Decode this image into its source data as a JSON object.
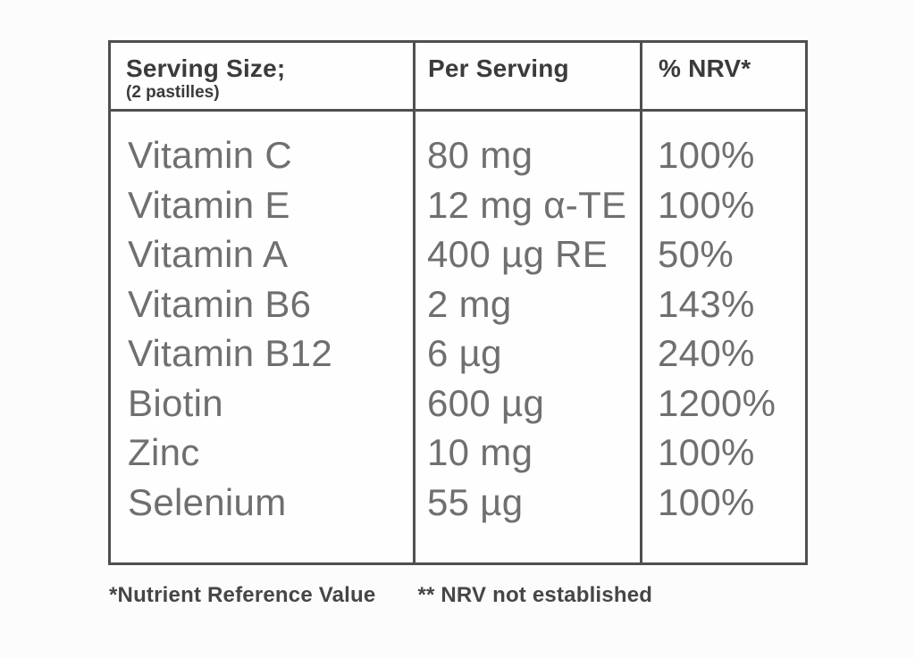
{
  "table": {
    "header": {
      "col1_title": "Serving Size;",
      "col1_subtitle": "(2 pastilles)",
      "col2_title": "Per Serving",
      "col3_title": "% NRV*"
    },
    "rows": [
      {
        "nutrient": "Vitamin C",
        "amount": "80 mg",
        "nrv": "100%"
      },
      {
        "nutrient": "Vitamin E",
        "amount": "12 mg α-TE",
        "nrv": "100%"
      },
      {
        "nutrient": "Vitamin A",
        "amount": "400 µg RE",
        "nrv": "50%"
      },
      {
        "nutrient": "Vitamin B6",
        "amount": "2 mg",
        "nrv": "143%"
      },
      {
        "nutrient": "Vitamin B12",
        "amount": "6 µg",
        "nrv": "240%"
      },
      {
        "nutrient": "Biotin",
        "amount": "600 µg",
        "nrv": "1200%"
      },
      {
        "nutrient": "Zinc",
        "amount": "10 mg",
        "nrv": "100%"
      },
      {
        "nutrient": "Selenium",
        "amount": "55 µg",
        "nrv": "100%"
      }
    ]
  },
  "footnotes": {
    "nrv_definition": "*Nutrient Reference Value",
    "nrv_not_established": "** NRV not established"
  },
  "colors": {
    "border": "#4f4f4f",
    "header_text": "#3b3b3b",
    "body_text": "#6f6f6f",
    "footnote_text": "#464646",
    "background": "#fcfcfc"
  }
}
